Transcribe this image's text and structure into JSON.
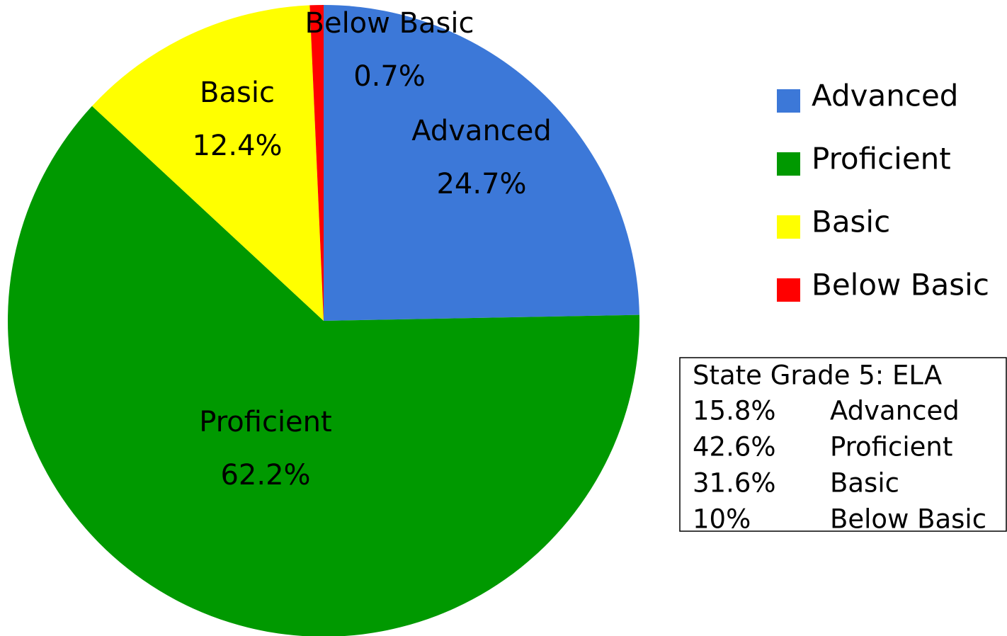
{
  "chart_data": {
    "type": "pie",
    "categories": [
      "Advanced",
      "Proficient",
      "Basic",
      "Below Basic"
    ],
    "values": [
      24.7,
      62.2,
      12.4,
      0.7
    ],
    "value_labels": [
      "24.7%",
      "62.2%",
      "12.4%",
      "0.7%"
    ],
    "colors": [
      "#3c78d8",
      "#009900",
      "#ffff00",
      "#ff0000"
    ],
    "legend": "right",
    "annotation": {
      "title": "State Grade 5: ELA",
      "rows": [
        [
          "15.8%",
          "Advanced"
        ],
        [
          "42.6%",
          "Proficient"
        ],
        [
          "31.6%",
          "Basic"
        ],
        [
          "10%",
          "Below Basic"
        ]
      ]
    }
  }
}
